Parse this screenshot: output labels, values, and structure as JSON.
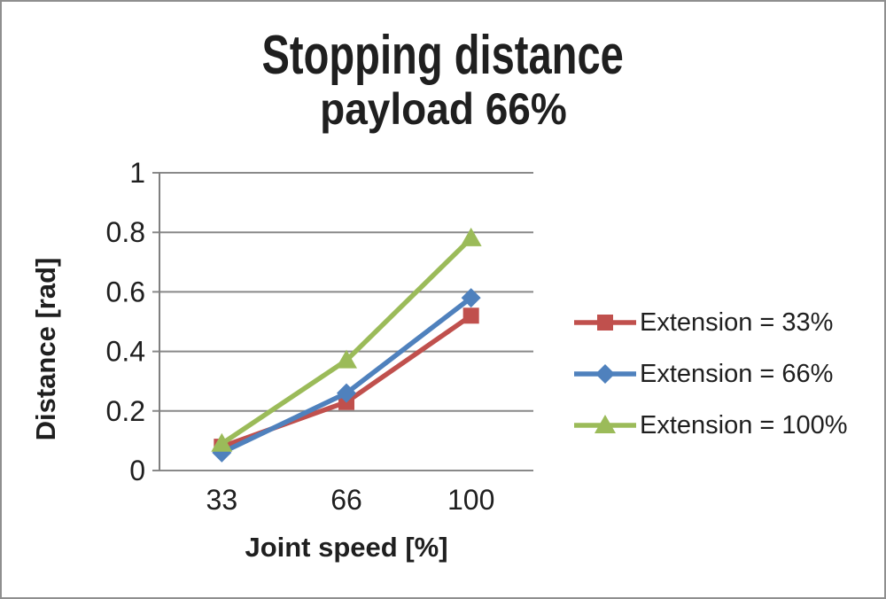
{
  "chart_data": {
    "type": "line",
    "title": "Stopping distance",
    "subtitle": "payload 66%",
    "xlabel": "Joint speed [%]",
    "ylabel": "Distance [rad]",
    "categories": [
      "33",
      "66",
      "100"
    ],
    "series": [
      {
        "name": "Extension = 33%",
        "marker": "square",
        "color": "#C0504D",
        "values": [
          0.08,
          0.23,
          0.52
        ]
      },
      {
        "name": "Extension = 66%",
        "marker": "diamond",
        "color": "#4F81BD",
        "values": [
          0.06,
          0.26,
          0.58
        ]
      },
      {
        "name": "Extension = 100%",
        "marker": "triangle",
        "color": "#9BBB59",
        "values": [
          0.09,
          0.37,
          0.78
        ]
      }
    ],
    "ylim": [
      0,
      1
    ],
    "yticks": [
      0,
      0.2,
      0.4,
      0.6,
      0.8,
      1
    ],
    "ytick_labels": [
      "0",
      "0.2",
      "0.4",
      "0.6",
      "0.8",
      "1"
    ],
    "grid": true,
    "legend_position": "right",
    "colors": {
      "gridline": "#898989",
      "axis": "#7F7F7F",
      "text": "#1F1F1F",
      "background": "#FFFFFF",
      "border": "#8F8F8F"
    }
  }
}
